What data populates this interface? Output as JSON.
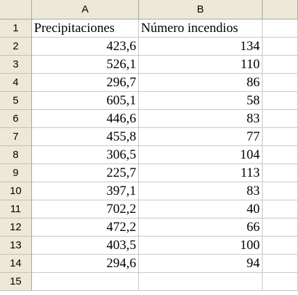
{
  "columns": [
    "A",
    "B"
  ],
  "rows": [
    {
      "num": "1",
      "a": "Precipitaciones",
      "b": "Número incendios"
    },
    {
      "num": "2",
      "a": "423,6",
      "b": "134"
    },
    {
      "num": "3",
      "a": "526,1",
      "b": "110"
    },
    {
      "num": "4",
      "a": "296,7",
      "b": "86"
    },
    {
      "num": "5",
      "a": "605,1",
      "b": "58"
    },
    {
      "num": "6",
      "a": "446,6",
      "b": "83"
    },
    {
      "num": "7",
      "a": "455,8",
      "b": "77"
    },
    {
      "num": "8",
      "a": "306,5",
      "b": "104"
    },
    {
      "num": "9",
      "a": "225,7",
      "b": "113"
    },
    {
      "num": "10",
      "a": "397,1",
      "b": "83"
    },
    {
      "num": "11",
      "a": "702,2",
      "b": "40"
    },
    {
      "num": "12",
      "a": "472,2",
      "b": "66"
    },
    {
      "num": "13",
      "a": "403,5",
      "b": "100"
    },
    {
      "num": "14",
      "a": "294,6",
      "b": "94"
    },
    {
      "num": "15",
      "a": "",
      "b": ""
    }
  ]
}
